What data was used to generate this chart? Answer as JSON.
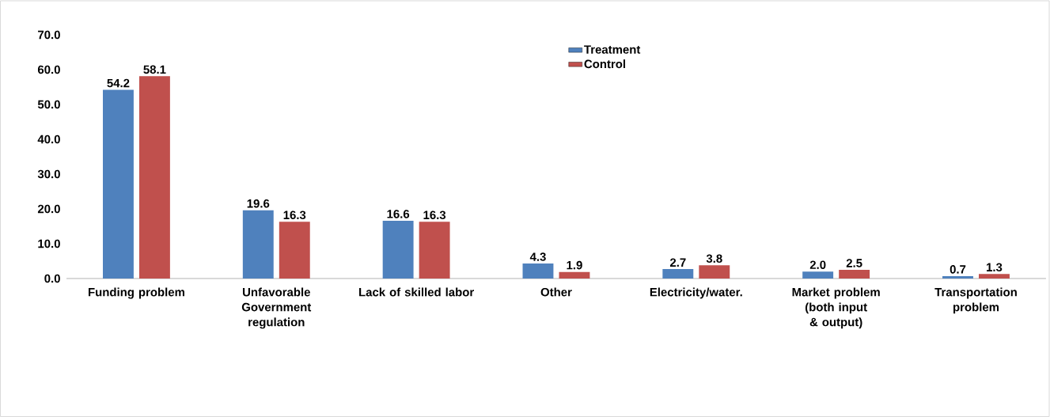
{
  "chart_data": {
    "type": "bar",
    "categories": [
      "Funding problem",
      "Unfavorable Government regulation",
      "Lack of skilled labor",
      "Other",
      "Electricity/water.",
      "Market problem (both input & output)",
      "Transportation problem"
    ],
    "series": [
      {
        "name": "Treatment",
        "color": "#4f81bd",
        "values": [
          54.2,
          19.6,
          16.6,
          4.3,
          2.7,
          2.0,
          0.7
        ],
        "value_labels": [
          "54.2",
          "19.6",
          "16.6",
          "4.3",
          "2.7",
          "2.0",
          "0.7"
        ]
      },
      {
        "name": "Control",
        "color": "#c0504d",
        "values": [
          58.1,
          16.3,
          16.3,
          1.9,
          3.8,
          2.5,
          1.3
        ],
        "value_labels": [
          "58.1",
          "16.3",
          "16.3",
          "1.9",
          "3.8",
          "2.5",
          "1.3"
        ]
      }
    ],
    "ylim": [
      0,
      70
    ],
    "yticks": [
      {
        "value": 0,
        "label": "0.0"
      },
      {
        "value": 10,
        "label": "10.0"
      },
      {
        "value": 20,
        "label": "20.0"
      },
      {
        "value": 30,
        "label": "30.0"
      },
      {
        "value": 40,
        "label": "40.0"
      },
      {
        "value": 50,
        "label": "50.0"
      },
      {
        "value": 60,
        "label": "60.0"
      },
      {
        "value": 70,
        "label": "70.0"
      }
    ],
    "legend": "top"
  }
}
